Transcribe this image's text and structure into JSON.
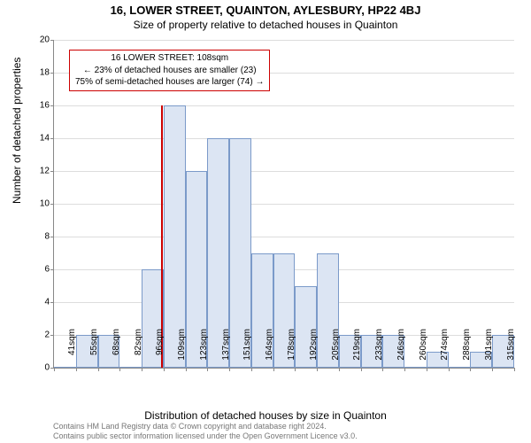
{
  "chart": {
    "type": "histogram",
    "title": "16, LOWER STREET, QUAINTON, AYLESBURY, HP22 4BJ",
    "subtitle": "Size of property relative to detached houses in Quainton",
    "xlabel": "Distribution of detached houses by size in Quainton",
    "ylabel": "Number of detached properties",
    "ylim": [
      0,
      20
    ],
    "ytick_step": 2,
    "yticks": [
      0,
      2,
      4,
      6,
      8,
      10,
      12,
      14,
      16,
      18,
      20
    ],
    "xtick_labels": [
      "41sqm",
      "55sqm",
      "68sqm",
      "82sqm",
      "96sqm",
      "109sqm",
      "123sqm",
      "137sqm",
      "151sqm",
      "164sqm",
      "178sqm",
      "192sqm",
      "205sqm",
      "219sqm",
      "233sqm",
      "246sqm",
      "260sqm",
      "274sqm",
      "288sqm",
      "301sqm",
      "315sqm"
    ],
    "bar_values": [
      0,
      2,
      2,
      0,
      6,
      16,
      12,
      14,
      14,
      7,
      7,
      5,
      7,
      2,
      2,
      2,
      0,
      1,
      0,
      1,
      2
    ],
    "bar_fill": "#dce5f3",
    "bar_border": "#7b9ac9",
    "grid_color": "#dddddd",
    "axis_color": "#888888",
    "background_color": "#ffffff",
    "title_fontsize": 13,
    "subtitle_fontsize": 12,
    "label_fontsize": 12,
    "tick_fontsize": 10,
    "annotation": {
      "line1": "16 LOWER STREET: 108sqm",
      "line2": "← 23% of detached houses are smaller (23)",
      "line3": "75% of semi-detached houses are larger (74) →",
      "border_color": "#cc0000",
      "text_color": "#000000",
      "fontsize": 10
    },
    "marker": {
      "position_value": 108,
      "x_range": [
        41,
        328
      ],
      "color": "#cc0000",
      "height_value": 16
    }
  },
  "license": {
    "line1": "Contains HM Land Registry data © Crown copyright and database right 2024.",
    "line2": "Contains public sector information licensed under the Open Government Licence v3.0."
  }
}
